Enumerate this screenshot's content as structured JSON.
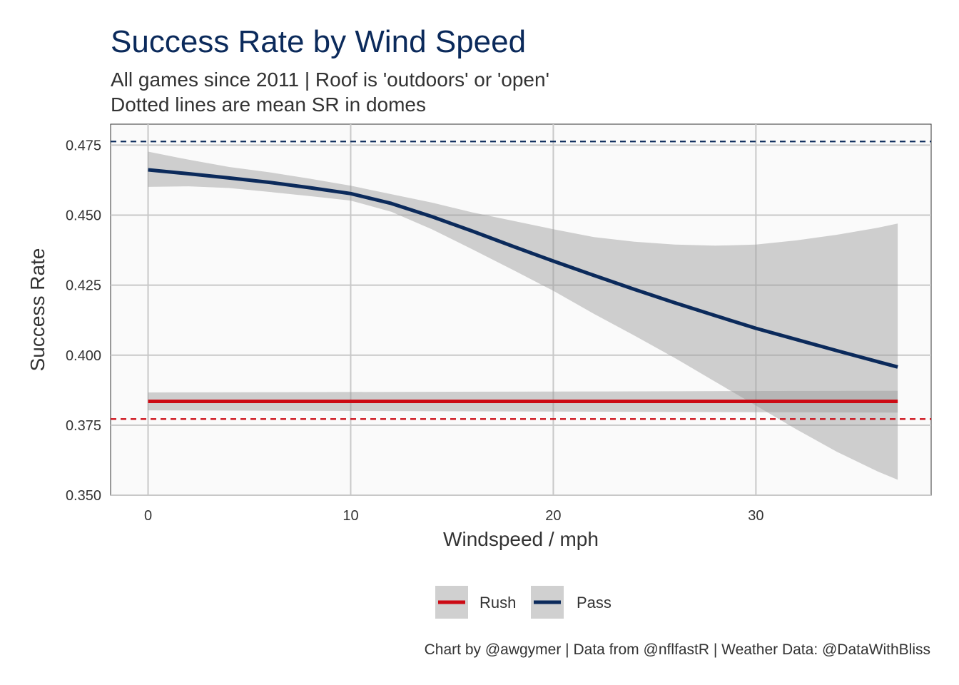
{
  "chart_data": {
    "type": "line",
    "title": "Success Rate by Wind Speed",
    "subtitle_lines": [
      "All games since 2011 | Roof is 'outdoors' or 'open'",
      "Dotted lines are mean SR in domes"
    ],
    "xlabel": "Windspeed / mph",
    "ylabel": "Success Rate",
    "caption": "Chart by @awgymer | Data from @nflfastR | Weather Data: @DataWithBliss",
    "xlim": [
      -1.85,
      38.65
    ],
    "ylim": [
      0.35,
      0.4825
    ],
    "x_ticks": [
      {
        "value": 0,
        "label": "0"
      },
      {
        "value": 10,
        "label": "10"
      },
      {
        "value": 20,
        "label": "20"
      },
      {
        "value": 30,
        "label": "30"
      }
    ],
    "y_ticks": [
      {
        "value": 0.35,
        "label": "0.350"
      },
      {
        "value": 0.375,
        "label": "0.375"
      },
      {
        "value": 0.4,
        "label": "0.400"
      },
      {
        "value": 0.425,
        "label": "0.425"
      },
      {
        "value": 0.45,
        "label": "0.450"
      },
      {
        "value": 0.475,
        "label": "0.475"
      }
    ],
    "grid": true,
    "legend_position": "bottom",
    "series": [
      {
        "name": "Rush",
        "color": "#cc0a14",
        "x": [
          0,
          37
        ],
        "y": [
          0.3835,
          0.3835
        ],
        "ci_lower": [
          0.3803,
          0.3795
        ],
        "ci_upper": [
          0.3867,
          0.3873
        ],
        "dome_mean": 0.3772
      },
      {
        "name": "Pass",
        "color": "#0b2a5b",
        "x": [
          0,
          2,
          4,
          6,
          8,
          10,
          12,
          14,
          16,
          18,
          20,
          22,
          24,
          26,
          28,
          30,
          32,
          34,
          36,
          37
        ],
        "y": [
          0.4662,
          0.4648,
          0.4633,
          0.4617,
          0.4598,
          0.4577,
          0.4542,
          0.4495,
          0.4443,
          0.4389,
          0.4336,
          0.4285,
          0.4235,
          0.4187,
          0.4141,
          0.4096,
          0.4056,
          0.4016,
          0.3977,
          0.3958
        ],
        "ci_lower": [
          0.4601,
          0.4603,
          0.4597,
          0.4583,
          0.4568,
          0.4552,
          0.4512,
          0.445,
          0.4378,
          0.4305,
          0.423,
          0.4148,
          0.407,
          0.399,
          0.3905,
          0.382,
          0.3735,
          0.3655,
          0.3585,
          0.3555
        ],
        "ci_upper": [
          0.4727,
          0.4698,
          0.4672,
          0.4653,
          0.463,
          0.4605,
          0.4575,
          0.4545,
          0.451,
          0.448,
          0.445,
          0.4422,
          0.4405,
          0.4395,
          0.4391,
          0.4395,
          0.441,
          0.443,
          0.4455,
          0.447
        ],
        "dome_mean": 0.4763
      }
    ]
  }
}
